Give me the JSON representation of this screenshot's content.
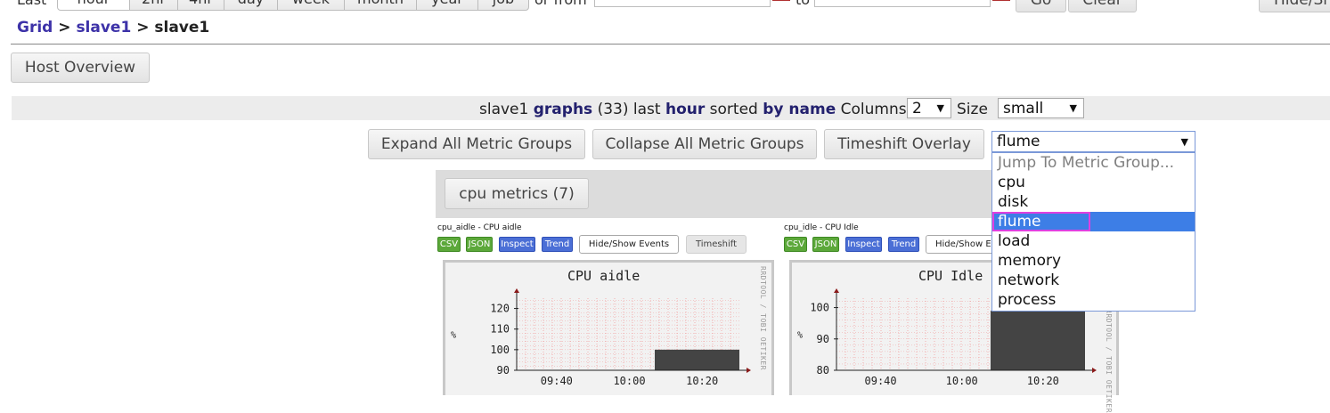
{
  "range_bar": {
    "last_label": "Last",
    "buttons": [
      "hour",
      "2hr",
      "4hr",
      "day",
      "week",
      "month",
      "year",
      "job"
    ],
    "from_label": "or from",
    "to_label": "to",
    "go_label": "Go",
    "clear_label": "Clear",
    "hide_show_label": "Hide/Sh"
  },
  "breadcrumb": {
    "grid": "Grid",
    "sep1": ">",
    "cluster": "slave1",
    "sep2": ">",
    "host": "slave1"
  },
  "host_overview_label": "Host Overview",
  "graph_bar": {
    "host": "slave1",
    "graphs_word": "graphs",
    "count": "(33)",
    "last_word": "last",
    "range": "hour",
    "sorted_word": "sorted",
    "sort_by": "by name",
    "columns_label": "Columns",
    "columns_value": "2",
    "size_label": "Size",
    "size_value": "small"
  },
  "toolbar": {
    "expand": "Expand All Metric Groups",
    "collapse": "Collapse All Metric Groups",
    "timeshift": "Timeshift Overlay",
    "jump_value": "flume"
  },
  "jump_dropdown": {
    "options": [
      "Jump To Metric Group...",
      "cpu",
      "disk",
      "flume",
      "load",
      "memory",
      "network",
      "process"
    ],
    "selected": "flume"
  },
  "metric_group": {
    "label": "cpu metrics (7)"
  },
  "graphs": [
    {
      "caption": "cpu_aidle - CPU aidle",
      "title": "CPU aidle",
      "unit": "%",
      "y_ticks": [
        "120",
        "110",
        "100",
        "90"
      ],
      "x_ticks": [
        "09:40",
        "10:00",
        "10:20"
      ],
      "side": "RRDTOOL / TOBI OETIKER",
      "buttons": {
        "csv": "CSV",
        "json": "JSON",
        "inspect": "Inspect",
        "trend": "Trend",
        "events": "Hide/Show Events",
        "timeshift": "Timeshift"
      },
      "series": {
        "start_fraction": 0.62,
        "level": 100,
        "y_min": 90,
        "y_max": 125
      }
    },
    {
      "caption": "cpu_idle - CPU Idle",
      "title": "CPU Idle",
      "unit": "%",
      "y_ticks": [
        "100",
        "90",
        "80"
      ],
      "x_ticks": [
        "09:40",
        "10:00",
        "10:20"
      ],
      "side": "RRDTOOL / TOBI OETIKER",
      "buttons": {
        "csv": "CSV",
        "json": "JSON",
        "inspect": "Inspect",
        "trend": "Trend",
        "events": "Hide/Show E"
      },
      "series": {
        "start_fraction": 0.62,
        "level": 99,
        "y_min": 80,
        "y_max": 103
      }
    }
  ],
  "colors": {
    "link": "#3d32a8",
    "selected_option": "#3d7ee6",
    "highlight_outline": "#e040e0",
    "chip_green": "#5ca83a",
    "chip_blue": "#4b6fd6",
    "graph_fill": "#444444",
    "grid_red": "#f08080"
  }
}
